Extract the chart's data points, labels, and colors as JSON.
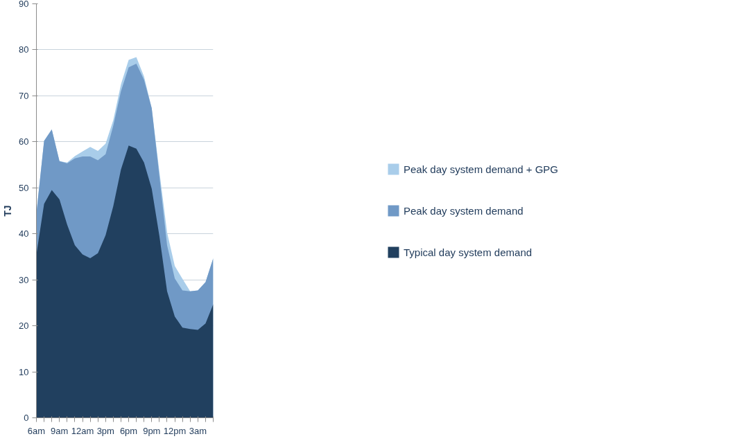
{
  "chart_data": {
    "type": "area",
    "ylabel": "TJ",
    "categories": [
      "6am",
      null,
      null,
      "9am",
      null,
      null,
      "12am",
      null,
      null,
      "3pm",
      null,
      null,
      "6pm",
      null,
      null,
      "9pm",
      null,
      null,
      "12pm",
      null,
      null,
      "3am",
      null,
      null
    ],
    "series": [
      {
        "name": "Peak day system demand + GPG",
        "color": "#a9cdea",
        "values": [
          44.5,
          60.2,
          62.7,
          55.8,
          55.5,
          56.9,
          57.9,
          58.9,
          58,
          59.6,
          64.7,
          72.5,
          77.8,
          78.4,
          74.2,
          67.3,
          53.5,
          40.3,
          33,
          30.2,
          27.5,
          27.7,
          29.5,
          34.7
        ]
      },
      {
        "name": "Peak day system demand",
        "color": "#7099c6",
        "values": [
          44.5,
          60.2,
          62.7,
          55.8,
          55.3,
          56.4,
          56.8,
          56.8,
          56,
          57.3,
          63.5,
          71,
          76.2,
          77,
          73.5,
          67.3,
          52.5,
          37.5,
          30.3,
          27.7,
          27.5,
          27.7,
          29.5,
          34.7
        ]
      },
      {
        "name": "Typical day system demand",
        "color": "#21405f",
        "values": [
          35.5,
          46.5,
          49.5,
          47.5,
          42,
          37.5,
          35.5,
          34.7,
          35.8,
          39.7,
          46,
          54,
          59.2,
          58.5,
          55.5,
          49.8,
          39.5,
          27.5,
          22,
          19.6,
          19.3,
          19.1,
          20.5,
          24.7
        ]
      }
    ],
    "ylim": [
      0,
      90
    ],
    "yticks": [
      0,
      10,
      20,
      30,
      40,
      50,
      60,
      70,
      80,
      90
    ],
    "grid": "y",
    "legend": "right"
  }
}
